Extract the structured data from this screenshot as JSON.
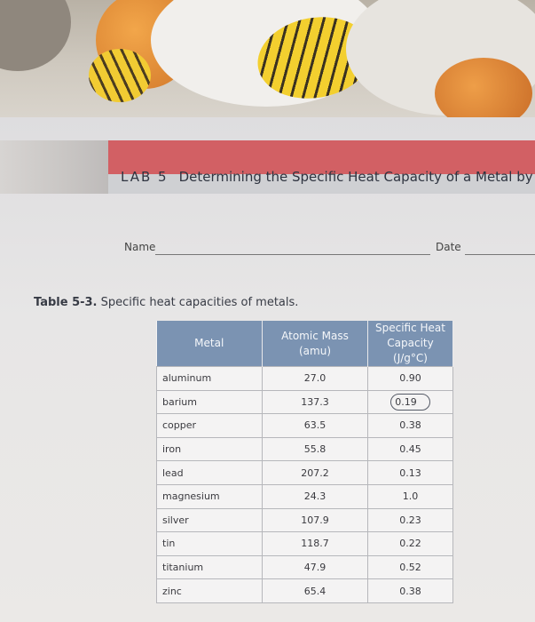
{
  "header": {
    "lab_number": "LAB 5",
    "lab_title": "Determining the Specific Heat Capacity of a Metal by Ca"
  },
  "form": {
    "name_label": "Name",
    "date_label": "Date"
  },
  "table": {
    "caption_number": "Table 5-3.",
    "caption_text": " Specific heat capacities of metals.",
    "headers": [
      "Metal",
      "Atomic Mass\n(amu)",
      "Specific Heat\nCapacity (J/g°C)"
    ],
    "rows": [
      {
        "metal": "aluminum",
        "mass": "27.0",
        "heat": "0.90"
      },
      {
        "metal": "barium",
        "mass": "137.3",
        "heat": "0.19",
        "circled": true
      },
      {
        "metal": "copper",
        "mass": "63.5",
        "heat": "0.38"
      },
      {
        "metal": "iron",
        "mass": "55.8",
        "heat": "0.45"
      },
      {
        "metal": "lead",
        "mass": "207.2",
        "heat": "0.13"
      },
      {
        "metal": "magnesium",
        "mass": "24.3",
        "heat": "1.0"
      },
      {
        "metal": "silver",
        "mass": "107.9",
        "heat": "0.23"
      },
      {
        "metal": "tin",
        "mass": "118.7",
        "heat": "0.22"
      },
      {
        "metal": "titanium",
        "mass": "47.9",
        "heat": "0.52"
      },
      {
        "metal": "zinc",
        "mass": "65.4",
        "heat": "0.38"
      }
    ]
  },
  "colors": {
    "header_band": "#d26064",
    "table_header": "#7b93b2"
  }
}
